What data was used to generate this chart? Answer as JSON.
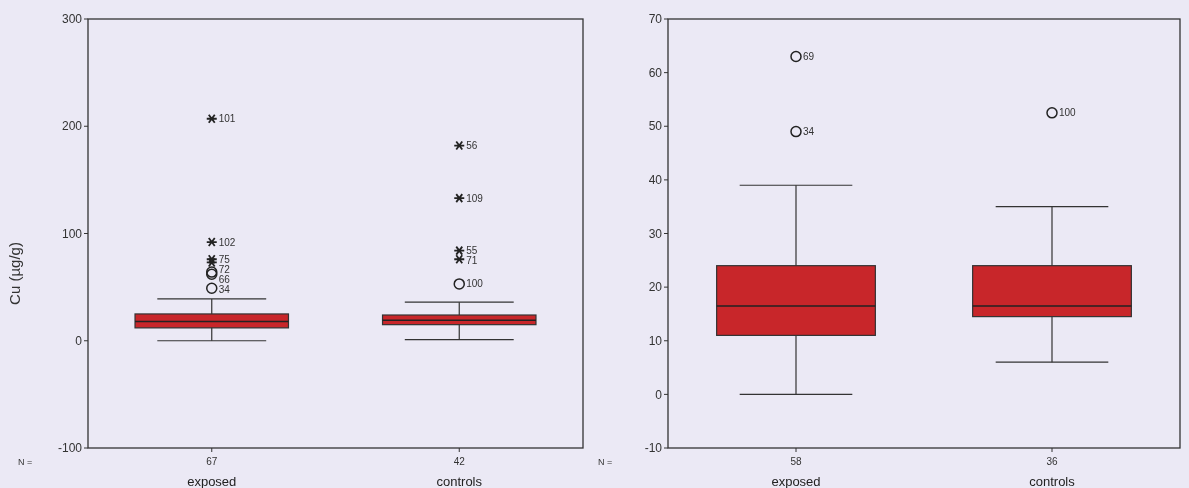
{
  "chart_data": [
    {
      "type": "box",
      "categories": [
        "exposed",
        "controls"
      ],
      "ylabel": "Cu (µg/g)",
      "ylim": [
        -100,
        300
      ],
      "yticks": [
        {
          "value": -100,
          "label": "-100"
        },
        0,
        100,
        200,
        300
      ],
      "color": "#c8262a",
      "boxes": [
        {
          "low": 0,
          "q1": 12,
          "median": 18,
          "q3": 25,
          "high": 39
        },
        {
          "low": 1,
          "q1": 15,
          "median": 19,
          "q3": 24,
          "high": 36
        }
      ],
      "series": [
        {
          "type": "scatter",
          "marker": "cross",
          "color": "#222222",
          "x": [
            "exposed",
            "exposed",
            "exposed",
            "exposed",
            "controls",
            "controls",
            "controls",
            "controls"
          ],
          "values": [
            207,
            92,
            76,
            73,
            182,
            133,
            84,
            76
          ]
        },
        {
          "type": "scatter",
          "marker": "circle",
          "color": "#222222",
          "x": [
            "exposed",
            "exposed",
            "exposed",
            "controls"
          ],
          "values": [
            64,
            62,
            49,
            53
          ]
        }
      ],
      "annotations": [
        "N =",
        "67",
        "42",
        {
          "text": "101",
          "x": "exposed",
          "y": 207
        },
        {
          "text": "102",
          "x": "exposed",
          "y": 92
        },
        {
          "text": "75",
          "x": "exposed",
          "y": 76
        },
        {
          "text": "72",
          "x": "exposed",
          "y": 73
        },
        {
          "text": "66",
          "x": "exposed",
          "y": 64
        },
        {
          "text": "34",
          "x": "exposed",
          "y": 49
        },
        {
          "text": "56",
          "x": "controls",
          "y": 182
        },
        {
          "text": "109",
          "x": "controls",
          "y": 133
        },
        {
          "text": "55",
          "x": "controls",
          "y": 84
        },
        {
          "text": "71",
          "x": "controls",
          "y": 76
        },
        {
          "text": "100",
          "x": "controls",
          "y": 53
        }
      ]
    },
    {
      "type": "box",
      "categories": [
        "exposed",
        "controls"
      ],
      "ylim": [
        -10,
        70
      ],
      "yticks": [
        {
          "value": -10,
          "label": "-10"
        },
        0,
        10,
        20,
        30,
        40,
        50,
        60,
        70
      ],
      "color": "#c8262a",
      "boxes": [
        {
          "low": 0,
          "q1": 11,
          "median": 16.5,
          "q3": 24,
          "high": 39
        },
        {
          "low": 6,
          "q1": 14.5,
          "median": 16.5,
          "q3": 24,
          "high": 35
        }
      ],
      "series": [
        {
          "type": "scatter",
          "marker": "circle",
          "color": "#222222",
          "x": [
            "exposed",
            "exposed",
            "controls"
          ],
          "values": [
            63,
            49,
            52.5
          ]
        }
      ],
      "annotations": [
        "N =",
        "58",
        "36",
        {
          "text": "69",
          "x": "exposed",
          "y": 63
        },
        {
          "text": "34",
          "x": "exposed",
          "y": 49
        },
        {
          "text": "100",
          "x": "controls",
          "y": 52.5
        }
      ]
    }
  ]
}
